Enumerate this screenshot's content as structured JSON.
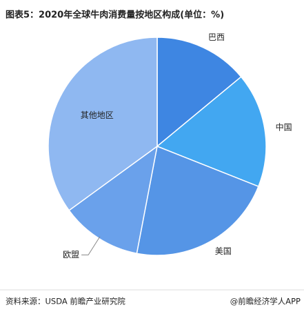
{
  "chart_data": {
    "type": "pie",
    "title": "图表5：2020年全球牛肉消费量按地区构成(单位：%)",
    "categories": [
      "巴西",
      "中国",
      "美国",
      "欧盟",
      "其他地区"
    ],
    "values": [
      14,
      17,
      22,
      12,
      35
    ],
    "colors": [
      "#3e86e2",
      "#42a7f1",
      "#5595e6",
      "#6aa1eb",
      "#8fb8f1"
    ],
    "source": "资料来源：USDA 前瞻产业研究院",
    "credit": "@前瞻经济学人APP"
  }
}
